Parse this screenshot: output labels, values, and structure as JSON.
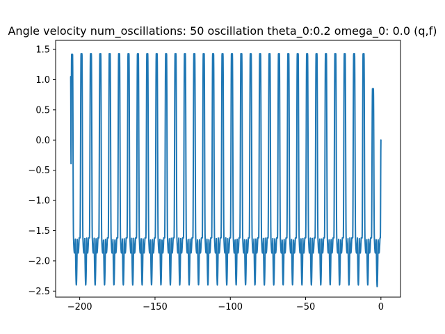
{
  "chart_data": {
    "type": "line",
    "title": "Angle velocity num_oscillations: 50 oscillation theta_0:0.2 omega_0: 0.0 (q,f)",
    "xlabel": "",
    "ylabel": "",
    "xlim": [
      -216,
      13
    ],
    "ylim": [
      -2.6,
      1.65
    ],
    "x_ticks": [
      -200,
      -150,
      -100,
      -50,
      0
    ],
    "x_tick_labels": [
      "−200",
      "−150",
      "−100",
      "−50",
      "0"
    ],
    "y_ticks": [
      -2.5,
      -2.0,
      -1.5,
      -1.0,
      -0.5,
      0.0,
      0.5,
      1.0,
      1.5
    ],
    "y_tick_labels": [
      "−2.5",
      "−2.0",
      "−1.5",
      "−1.0",
      "−0.5",
      "0.0",
      "0.5",
      "1.0",
      "1.5"
    ],
    "grid": false,
    "legend": "none",
    "line_color": "#1f77b4",
    "series": [
      {
        "x_start": -206.0,
        "x_end": 0.0,
        "start_value": 1.05,
        "end_value": 0.0,
        "num_cycles": 33,
        "peak_value": 1.43,
        "first_peak_value": 1.42,
        "last_peak_value": 0.85,
        "trough_value": -2.4,
        "last_trough_value": -2.43,
        "shoulder_value": -1.62,
        "shoulder_dip_value": -1.87
      }
    ]
  }
}
